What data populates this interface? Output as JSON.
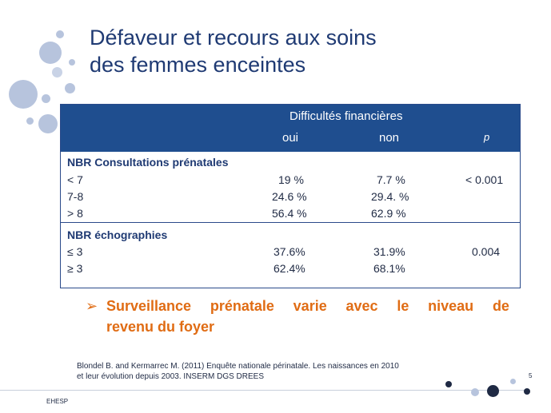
{
  "slide": {
    "title_line1": "Défaveur et recours aux soins",
    "title_line2": "des femmes enceintes",
    "page_number": "5",
    "footer": "EHESP"
  },
  "table": {
    "group_header": "Difficultés financières",
    "col_oui": "oui",
    "col_non": "non",
    "col_p": "p",
    "section1": {
      "title": "NBR Consultations prénatales",
      "rows": [
        {
          "label": "< 7",
          "oui": "19 %",
          "non": "7.7 %",
          "p": "< 0.001"
        },
        {
          "label": "7-8",
          "oui": "24.6 %",
          "non": "29.4. %",
          "p": ""
        },
        {
          "label": "> 8",
          "oui": "56.4 %",
          "non": "62.9 %",
          "p": ""
        }
      ]
    },
    "section2": {
      "title": "NBR échographies",
      "rows": [
        {
          "label": "≤ 3",
          "oui": "37.6%",
          "non": "31.9%",
          "p": "0.004"
        },
        {
          "label": "≥ 3",
          "oui": "62.4%",
          "non": "68.1%",
          "p": ""
        }
      ]
    }
  },
  "bullet": {
    "marker": "➢",
    "line1_words": [
      "Surveillance",
      "prénatale",
      "varie",
      "avec",
      "le",
      "niveau",
      "de"
    ],
    "line2": "revenu du foyer"
  },
  "reference": {
    "line1": "Blondel B. and Kermarrec M. (2011) Enquête nationale périnatale. Les naissances en 2010",
    "line2": "et leur évolution depuis 2003. INSERM DGS DREES"
  },
  "colors": {
    "title": "#1f3a73",
    "header_bg": "#1f4e8f",
    "accent_orange": "#e06c14",
    "dot_light": "#b7c4dd",
    "dot_dark": "#1f2a44"
  }
}
